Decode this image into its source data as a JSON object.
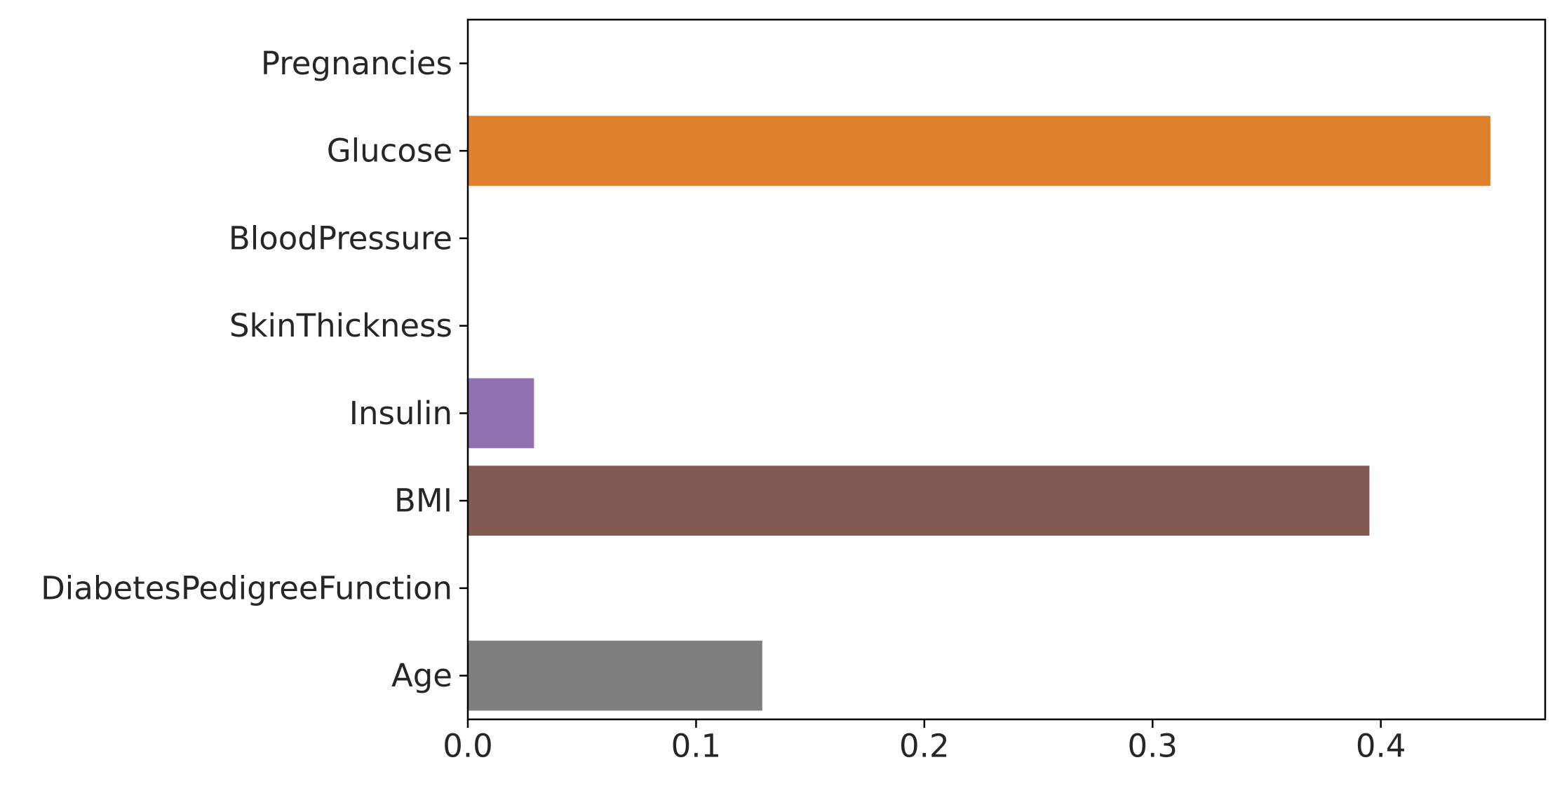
{
  "chart_data": {
    "type": "bar",
    "orientation": "horizontal",
    "title": "",
    "xlabel": "",
    "ylabel": "",
    "categories": [
      "Pregnancies",
      "Glucose",
      "BloodPressure",
      "SkinThickness",
      "Insulin",
      "BMI",
      "DiabetesPedigreeFunction",
      "Age"
    ],
    "values": [
      0,
      0.448,
      0,
      0,
      0.029,
      0.395,
      0,
      0.129
    ],
    "colors": [
      "#1f77b4",
      "#e07f2c",
      "#2ca02c",
      "#d62728",
      "#9271b0",
      "#825a52",
      "#e377c2",
      "#7f7f7f"
    ],
    "xlim": [
      0,
      0.472
    ],
    "xticks": [
      0.0,
      0.1,
      0.2,
      0.3,
      0.4
    ],
    "xtick_labels": [
      "0.0",
      "0.1",
      "0.2",
      "0.3",
      "0.4"
    ],
    "grid": false,
    "legend": "none"
  }
}
